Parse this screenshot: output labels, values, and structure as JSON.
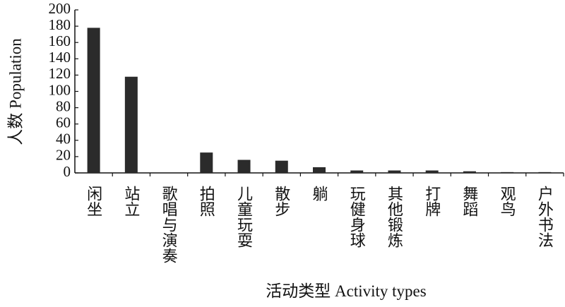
{
  "chart_data": {
    "type": "bar",
    "x_label": "活动类型 Activity types",
    "y_label": "人数 Population",
    "categories": [
      "闲坐",
      "站立",
      "歌唱与演奏",
      "拍照",
      "儿童玩耍",
      "散步",
      "躺",
      "玩健身球",
      "其他锻炼",
      "打牌",
      "舞蹈",
      "观鸟",
      "户外书法"
    ],
    "values": [
      178,
      118,
      0,
      25,
      16,
      15,
      7,
      3,
      3,
      3,
      2,
      1,
      1
    ],
    "color": "#2b2b2b",
    "ylim": [
      0,
      200
    ],
    "yticks": [
      0,
      20,
      40,
      60,
      80,
      100,
      120,
      140,
      160,
      180,
      200
    ],
    "grid": false
  }
}
